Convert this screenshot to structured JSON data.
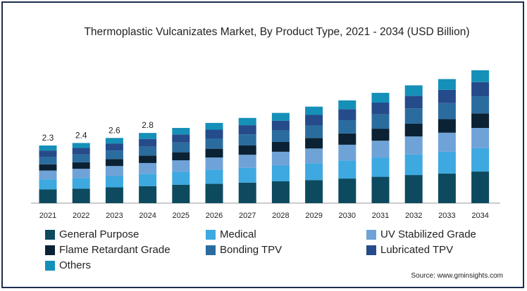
{
  "chart_data": {
    "type": "bar",
    "stacked": true,
    "title": "Thermoplastic Vulcanizates Market, By Product Type, 2021 - 2034 (USD Billion)",
    "categories": [
      "2021",
      "2022",
      "2023",
      "2024",
      "2025",
      "2026",
      "2027",
      "2028",
      "2029",
      "2030",
      "2031",
      "2032",
      "2033",
      "2034"
    ],
    "totals": [
      2.3,
      2.4,
      2.6,
      2.8,
      3.0,
      3.2,
      3.4,
      3.6,
      3.85,
      4.1,
      4.4,
      4.7,
      4.95,
      5.3
    ],
    "total_labels": [
      "2.3",
      "2.4",
      "2.6",
      "2.8"
    ],
    "series": [
      {
        "name": "General Purpose",
        "color": "#0d4a5f",
        "values": [
          0.55,
          0.58,
          0.63,
          0.68,
          0.73,
          0.77,
          0.82,
          0.87,
          0.92,
          0.98,
          1.05,
          1.12,
          1.18,
          1.26
        ]
      },
      {
        "name": "Medical",
        "color": "#3da9e0",
        "values": [
          0.4,
          0.42,
          0.45,
          0.49,
          0.52,
          0.56,
          0.59,
          0.63,
          0.67,
          0.72,
          0.77,
          0.82,
          0.87,
          0.93
        ]
      },
      {
        "name": "UV Stabilized Grade",
        "color": "#6fa3d8",
        "values": [
          0.35,
          0.37,
          0.4,
          0.43,
          0.46,
          0.49,
          0.52,
          0.55,
          0.59,
          0.63,
          0.67,
          0.72,
          0.76,
          0.81
        ]
      },
      {
        "name": "Flame Retardant Grade",
        "color": "#0b2234",
        "values": [
          0.25,
          0.26,
          0.28,
          0.3,
          0.32,
          0.35,
          0.37,
          0.39,
          0.42,
          0.45,
          0.48,
          0.51,
          0.54,
          0.58
        ]
      },
      {
        "name": "Bonding TPV",
        "color": "#2b6c9f",
        "values": [
          0.3,
          0.31,
          0.34,
          0.36,
          0.39,
          0.41,
          0.44,
          0.46,
          0.5,
          0.53,
          0.57,
          0.61,
          0.64,
          0.68
        ]
      },
      {
        "name": "Lubricated TPV",
        "color": "#254b8a",
        "values": [
          0.25,
          0.26,
          0.28,
          0.3,
          0.32,
          0.35,
          0.37,
          0.39,
          0.42,
          0.44,
          0.47,
          0.5,
          0.53,
          0.57
        ]
      },
      {
        "name": "Others",
        "color": "#1590b8",
        "values": [
          0.2,
          0.2,
          0.22,
          0.24,
          0.26,
          0.27,
          0.29,
          0.31,
          0.33,
          0.35,
          0.39,
          0.42,
          0.43,
          0.47
        ]
      }
    ],
    "ylim": [
      0,
      5.3
    ],
    "grid": false,
    "legend_position": "bottom"
  },
  "source": "Source: www.gminsights.com"
}
